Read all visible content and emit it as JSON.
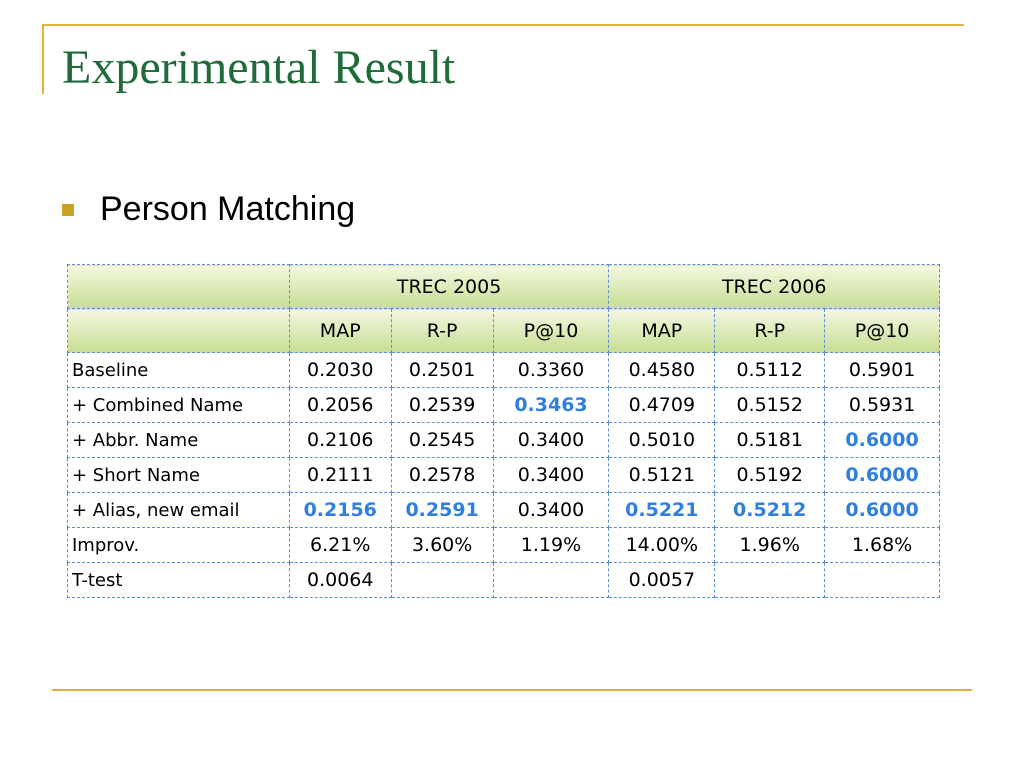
{
  "slide": {
    "title": "Experimental Result",
    "bullet": "Person Matching"
  },
  "colors": {
    "title": "#1f6b3a",
    "accent_rule": "#e2b43c",
    "bullet": "#c8a125",
    "highlight": "#2f7fe0",
    "table_border": "#5b8fd1"
  },
  "table": {
    "group_headers": [
      "TREC 2005",
      "TREC 2006"
    ],
    "metric_headers": [
      "MAP",
      "R-P",
      "P@10",
      "MAP",
      "R-P",
      "P@10"
    ],
    "rows": [
      {
        "label": "Baseline",
        "cells": [
          "0.2030",
          "0.2501",
          "0.3360",
          "0.4580",
          "0.5112",
          "0.5901"
        ],
        "highlight": [
          false,
          false,
          false,
          false,
          false,
          false
        ]
      },
      {
        "label": "+ Combined Name",
        "cells": [
          "0.2056",
          "0.2539",
          "0.3463",
          "0.4709",
          "0.5152",
          "0.5931"
        ],
        "highlight": [
          false,
          false,
          true,
          false,
          false,
          false
        ]
      },
      {
        "label": "+ Abbr. Name",
        "cells": [
          "0.2106",
          "0.2545",
          "0.3400",
          "0.5010",
          "0.5181",
          "0.6000"
        ],
        "highlight": [
          false,
          false,
          false,
          false,
          false,
          true
        ]
      },
      {
        "label": "+ Short Name",
        "cells": [
          "0.2111",
          "0.2578",
          "0.3400",
          "0.5121",
          "0.5192",
          "0.6000"
        ],
        "highlight": [
          false,
          false,
          false,
          false,
          false,
          true
        ]
      },
      {
        "label": "+ Alias, new email",
        "cells": [
          "0.2156",
          "0.2591",
          "0.3400",
          "0.5221",
          "0.5212",
          "0.6000"
        ],
        "highlight": [
          true,
          true,
          false,
          true,
          true,
          true
        ]
      },
      {
        "label": "Improv.",
        "cells": [
          "6.21%",
          "3.60%",
          "1.19%",
          "14.00%",
          "1.96%",
          "1.68%"
        ],
        "highlight": [
          false,
          false,
          false,
          false,
          false,
          false
        ]
      },
      {
        "label": "T-test",
        "cells": [
          "0.0064",
          "",
          "",
          "0.0057",
          "",
          ""
        ],
        "highlight": [
          false,
          false,
          false,
          false,
          false,
          false
        ]
      }
    ]
  }
}
